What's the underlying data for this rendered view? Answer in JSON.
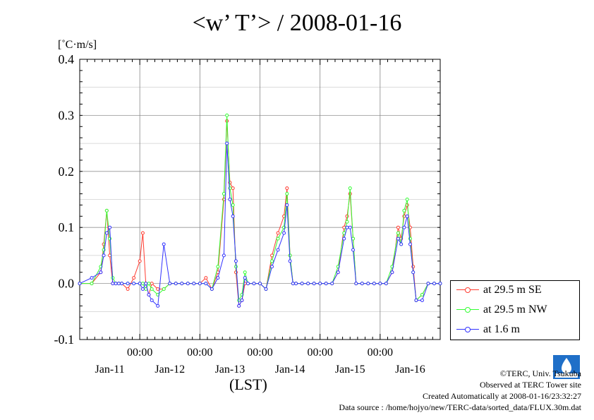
{
  "title": "<w’ T’> / 2008-01-16",
  "unit_label": "[˚C·m/s]",
  "xaxis_title": "(LST)",
  "credits": {
    "copyright": "©TERC, Univ. Tsukuba",
    "observed": "Observed at TERC Tower site",
    "created": "Created Automatically at 2008-01-16/23:32:27",
    "source": "Data source : /home/hojyo/new/TERC-data/sorted_data/FLUX.30m.dat"
  },
  "colors": {
    "se": "#ff3b30",
    "nw": "#33ff33",
    "m16": "#3333ff",
    "grid": "#888888"
  },
  "chart_data": {
    "type": "line",
    "title": "<w’ T’> / 2008-01-16",
    "ylabel": "[˚C·m/s]",
    "xlabel": "(LST)",
    "xlim": [
      0,
      6
    ],
    "ylim": [
      -0.1,
      0.4
    ],
    "yticks": [
      "-0.1",
      "0.0",
      "0.1",
      "0.2",
      "0.3",
      "0.4"
    ],
    "ytick_values": [
      -0.1,
      0.0,
      0.1,
      0.2,
      0.3,
      0.4
    ],
    "xtick_time_labels": [
      "00:00",
      "00:00",
      "00:00",
      "00:00",
      "00:00"
    ],
    "xtick_time_values": [
      1,
      2,
      3,
      4,
      5
    ],
    "xdate_labels": [
      "Jan-11",
      "Jan-12",
      "Jan-13",
      "Jan-14",
      "Jan-15",
      "Jan-16"
    ],
    "xdate_values": [
      0.5,
      1.5,
      2.5,
      3.5,
      4.5,
      5.5
    ],
    "grid": true,
    "legend_position": "right-bottom outside",
    "series": [
      {
        "name": "at 29.5 m SE",
        "color": "#ff3b30",
        "x": [
          0.0,
          0.2,
          0.35,
          0.4,
          0.45,
          0.5,
          0.55,
          0.6,
          0.65,
          0.7,
          0.8,
          0.9,
          1.0,
          1.05,
          1.1,
          1.15,
          1.2,
          1.3,
          1.4,
          1.5,
          1.6,
          1.7,
          1.8,
          1.9,
          2.0,
          2.1,
          2.2,
          2.3,
          2.4,
          2.45,
          2.5,
          2.55,
          2.6,
          2.65,
          2.7,
          2.75,
          2.8,
          2.9,
          3.0,
          3.1,
          3.2,
          3.3,
          3.4,
          3.45,
          3.5,
          3.55,
          3.6,
          3.7,
          3.8,
          3.9,
          4.0,
          4.1,
          4.2,
          4.3,
          4.4,
          4.45,
          4.5,
          4.55,
          4.6,
          4.7,
          4.8,
          4.9,
          5.0,
          5.1,
          5.2,
          5.3,
          5.35,
          5.4,
          5.45,
          5.5,
          5.55,
          5.6,
          5.7,
          5.8,
          5.9,
          6.0
        ],
        "y": [
          0.0,
          0.0,
          0.02,
          0.07,
          0.13,
          0.05,
          0.0,
          0.0,
          0.0,
          0.0,
          -0.01,
          0.01,
          0.04,
          0.09,
          0.0,
          -0.02,
          0.0,
          -0.01,
          -0.01,
          0.0,
          0.0,
          0.0,
          0.0,
          0.0,
          0.0,
          0.01,
          -0.01,
          0.02,
          0.15,
          0.29,
          0.18,
          0.17,
          0.02,
          -0.04,
          -0.03,
          0.0,
          0.0,
          0.0,
          0.0,
          -0.01,
          0.05,
          0.09,
          0.12,
          0.17,
          0.05,
          0.0,
          0.0,
          0.0,
          0.0,
          0.0,
          0.0,
          0.0,
          0.0,
          0.02,
          0.1,
          0.12,
          0.16,
          0.08,
          0.0,
          0.0,
          0.0,
          0.0,
          0.0,
          0.0,
          0.02,
          0.1,
          0.08,
          0.12,
          0.14,
          0.1,
          0.03,
          -0.03,
          -0.02,
          0.0,
          0.0,
          0.0
        ]
      },
      {
        "name": "at 29.5 m NW",
        "color": "#33ff33",
        "x": [
          0.0,
          0.2,
          0.35,
          0.4,
          0.45,
          0.5,
          0.55,
          0.6,
          0.65,
          0.7,
          0.8,
          0.9,
          1.0,
          1.05,
          1.1,
          1.15,
          1.2,
          1.3,
          1.4,
          1.5,
          1.6,
          1.7,
          1.8,
          1.9,
          2.0,
          2.1,
          2.2,
          2.3,
          2.4,
          2.45,
          2.5,
          2.55,
          2.6,
          2.65,
          2.7,
          2.75,
          2.8,
          2.9,
          3.0,
          3.1,
          3.2,
          3.3,
          3.4,
          3.45,
          3.5,
          3.55,
          3.6,
          3.7,
          3.8,
          3.9,
          4.0,
          4.1,
          4.2,
          4.3,
          4.4,
          4.45,
          4.5,
          4.55,
          4.6,
          4.7,
          4.8,
          4.9,
          5.0,
          5.1,
          5.2,
          5.3,
          5.35,
          5.4,
          5.45,
          5.5,
          5.55,
          5.6,
          5.7,
          5.8,
          5.9,
          6.0
        ],
        "y": [
          0.0,
          0.0,
          0.03,
          0.06,
          0.13,
          0.08,
          0.01,
          0.0,
          0.0,
          0.0,
          0.0,
          0.0,
          0.0,
          0.0,
          -0.01,
          0.0,
          -0.01,
          -0.02,
          -0.01,
          0.0,
          0.0,
          0.0,
          0.0,
          0.0,
          0.0,
          0.0,
          -0.01,
          0.03,
          0.16,
          0.3,
          0.17,
          0.14,
          0.03,
          -0.03,
          -0.02,
          0.02,
          0.0,
          0.0,
          0.0,
          -0.01,
          0.04,
          0.08,
          0.1,
          0.16,
          0.05,
          0.0,
          0.0,
          0.0,
          0.0,
          0.0,
          0.0,
          0.0,
          0.0,
          0.03,
          0.09,
          0.11,
          0.17,
          0.08,
          0.0,
          0.0,
          0.0,
          0.0,
          0.0,
          0.0,
          0.03,
          0.09,
          0.07,
          0.13,
          0.15,
          0.08,
          0.02,
          -0.03,
          -0.02,
          0.0,
          0.0,
          0.0
        ]
      },
      {
        "name": "at 1.6 m",
        "color": "#3333ff",
        "x": [
          0.0,
          0.2,
          0.35,
          0.4,
          0.45,
          0.5,
          0.55,
          0.6,
          0.65,
          0.7,
          0.8,
          0.9,
          1.0,
          1.05,
          1.1,
          1.15,
          1.2,
          1.3,
          1.4,
          1.5,
          1.6,
          1.7,
          1.8,
          1.9,
          2.0,
          2.1,
          2.2,
          2.3,
          2.4,
          2.45,
          2.5,
          2.55,
          2.6,
          2.65,
          2.7,
          2.75,
          2.8,
          2.9,
          3.0,
          3.1,
          3.2,
          3.3,
          3.4,
          3.45,
          3.5,
          3.55,
          3.6,
          3.7,
          3.8,
          3.9,
          4.0,
          4.1,
          4.2,
          4.3,
          4.4,
          4.45,
          4.5,
          4.55,
          4.6,
          4.7,
          4.8,
          4.9,
          5.0,
          5.1,
          5.2,
          5.3,
          5.35,
          5.4,
          5.45,
          5.5,
          5.55,
          5.6,
          5.7,
          5.8,
          5.9,
          6.0
        ],
        "y": [
          0.0,
          0.01,
          0.02,
          0.05,
          0.09,
          0.1,
          0.0,
          0.0,
          0.0,
          0.0,
          0.0,
          0.0,
          0.0,
          -0.01,
          0.0,
          -0.02,
          -0.03,
          -0.04,
          0.07,
          0.0,
          0.0,
          0.0,
          0.0,
          0.0,
          0.0,
          0.0,
          -0.01,
          0.01,
          0.05,
          0.25,
          0.15,
          0.12,
          0.04,
          -0.04,
          -0.03,
          0.01,
          0.0,
          0.0,
          0.0,
          -0.01,
          0.03,
          0.06,
          0.09,
          0.14,
          0.04,
          0.0,
          0.0,
          0.0,
          0.0,
          0.0,
          0.0,
          0.0,
          0.0,
          0.02,
          0.08,
          0.1,
          0.1,
          0.06,
          0.0,
          0.0,
          0.0,
          0.0,
          0.0,
          0.0,
          0.02,
          0.08,
          0.07,
          0.1,
          0.12,
          0.07,
          0.02,
          -0.03,
          -0.03,
          0.0,
          0.0,
          0.0
        ]
      }
    ]
  }
}
